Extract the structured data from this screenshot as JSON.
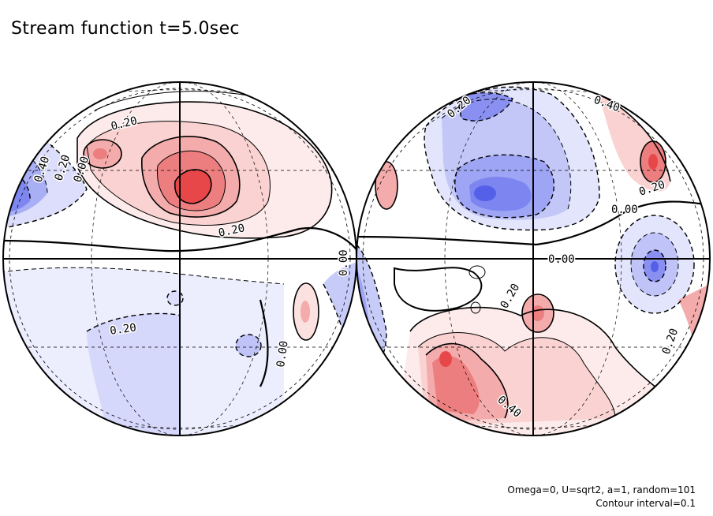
{
  "chart_data": {
    "type": "contour",
    "title": "Stream function t=5.0sec",
    "annotations": [
      "Omega=0, U=sqrt2, a=1, random=101",
      "Contour interval=0.1"
    ],
    "contour_interval": 0.1,
    "colors": {
      "positive": "#e8474a",
      "negative": "#5560e8",
      "line": "#000000"
    },
    "hemispheres": [
      {
        "name": "left",
        "contour_labels": [
          "0.20",
          "0.40",
          "0.20",
          "0.00",
          "0.20",
          "0.00",
          "0.20",
          "0.00"
        ],
        "features": [
          {
            "sign": "positive",
            "max": 0.6
          },
          {
            "sign": "positive",
            "max": 0.3
          },
          {
            "sign": "negative",
            "min": -0.4
          },
          {
            "sign": "negative",
            "min": -0.2
          }
        ]
      },
      {
        "name": "right",
        "contour_labels": [
          "0.20",
          "0.40",
          "0.20",
          "0.00",
          "0.00",
          "0.20",
          "0.40",
          "0.20"
        ],
        "features": [
          {
            "sign": "negative",
            "min": -0.4
          },
          {
            "sign": "negative",
            "min": -0.4
          },
          {
            "sign": "positive",
            "max": 0.5
          },
          {
            "sign": "positive",
            "max": 0.4
          },
          {
            "sign": "positive",
            "max": 0.3
          }
        ]
      }
    ]
  }
}
